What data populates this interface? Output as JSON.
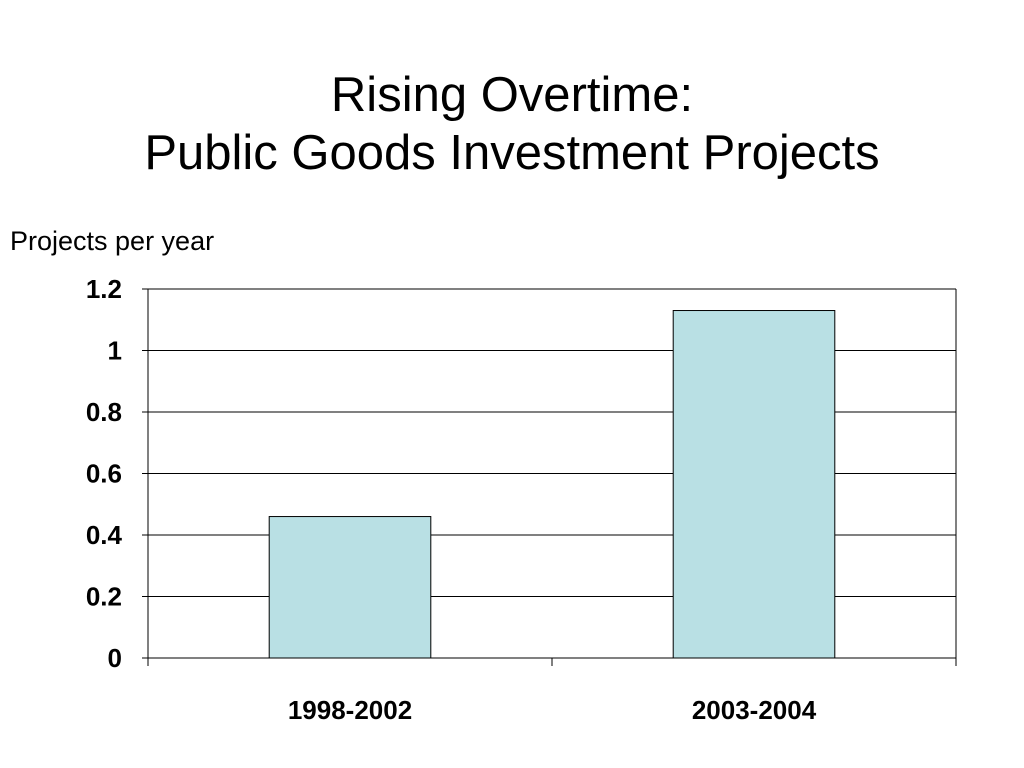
{
  "slide": {
    "title_line1": "Rising Overtime:",
    "title_line2": "Public Goods Investment Projects"
  },
  "chart_data": {
    "type": "bar",
    "title": "",
    "ylabel": "Projects per year",
    "xlabel": "",
    "categories": [
      "1998-2002",
      "2003-2004"
    ],
    "values": [
      0.46,
      1.13
    ],
    "ylim": [
      0,
      1.2
    ],
    "yticks": [
      "0",
      "0.2",
      "0.4",
      "0.6",
      "0.8",
      "1",
      "1.2"
    ],
    "grid": true,
    "legend": "none",
    "colors": {
      "bar_fill": "#b9e0e4",
      "bar_stroke": "#000000",
      "grid": "#000000",
      "axis": "#000000"
    }
  }
}
